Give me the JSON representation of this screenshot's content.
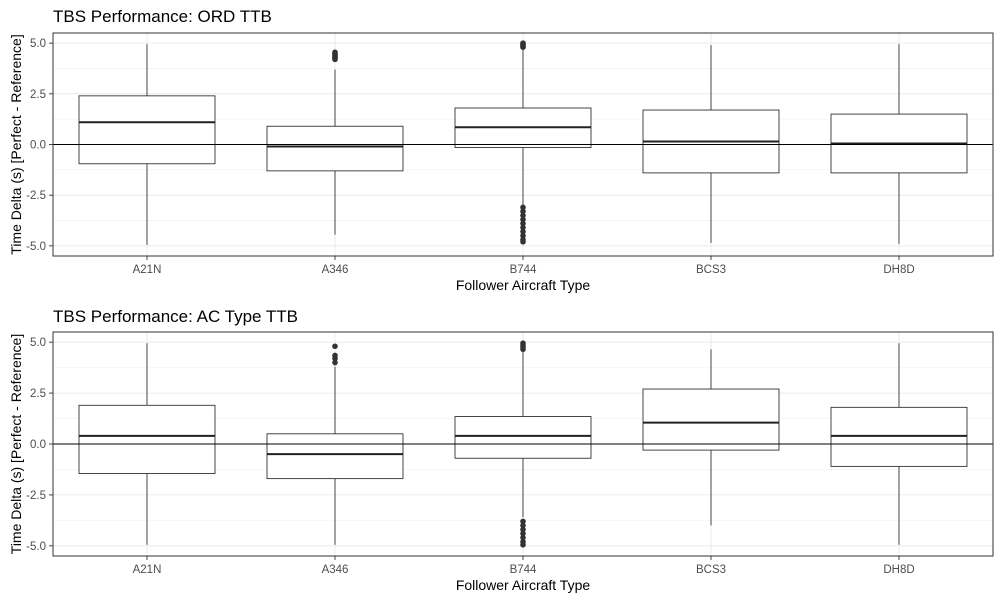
{
  "chart_data": [
    {
      "type": "boxplot",
      "title": "TBS Performance: ORD TTB",
      "xlabel": "Follower Aircraft Type",
      "ylabel": "Time Delta (s) [Perfect - Reference]",
      "ylim": [
        -5.5,
        5.5
      ],
      "yticks": [
        5.0,
        2.5,
        0.0,
        -2.5,
        -5.0
      ],
      "ytick_labels": [
        "5.0",
        "2.5",
        "0.0",
        "-2.5",
        "-5.0"
      ],
      "reference_line": 0,
      "grid": true,
      "categories": [
        "A21N",
        "A346",
        "B744",
        "BCS3",
        "DH8D"
      ],
      "boxes": [
        {
          "category": "A21N",
          "whisker_low": -4.95,
          "q1": -0.95,
          "median": 1.1,
          "q3": 2.4,
          "whisker_high": 4.95,
          "outliers": []
        },
        {
          "category": "A346",
          "whisker_low": -4.45,
          "q1": -1.3,
          "median": -0.1,
          "q3": 0.9,
          "whisker_high": 3.7,
          "outliers": [
            4.2,
            4.25,
            4.3,
            4.35,
            4.4,
            4.45,
            4.5,
            4.55
          ]
        },
        {
          "category": "B744",
          "whisker_low": -3.0,
          "q1": -0.15,
          "median": 0.85,
          "q3": 1.8,
          "whisker_high": 4.75,
          "outliers": [
            4.8,
            4.85,
            4.9,
            4.95,
            5.0,
            -3.1,
            -3.3,
            -3.5,
            -3.7,
            -3.9,
            -4.1,
            -4.3,
            -4.5,
            -4.7,
            -4.8
          ]
        },
        {
          "category": "BCS3",
          "whisker_low": -4.85,
          "q1": -1.4,
          "median": 0.15,
          "q3": 1.7,
          "whisker_high": 4.9,
          "outliers": []
        },
        {
          "category": "DH8D",
          "whisker_low": -4.9,
          "q1": -1.4,
          "median": 0.05,
          "q3": 1.5,
          "whisker_high": 4.95,
          "outliers": []
        }
      ]
    },
    {
      "type": "boxplot",
      "title": "TBS Performance: AC Type TTB",
      "xlabel": "Follower Aircraft Type",
      "ylabel": "Time Delta (s) [Perfect - Reference]",
      "ylim": [
        -5.5,
        5.5
      ],
      "yticks": [
        5.0,
        2.5,
        0.0,
        -2.5,
        -5.0
      ],
      "ytick_labels": [
        "5.0",
        "2.5",
        "0.0",
        "-2.5",
        "-5.0"
      ],
      "reference_line": 0,
      "grid": true,
      "categories": [
        "A21N",
        "A346",
        "B744",
        "BCS3",
        "DH8D"
      ],
      "boxes": [
        {
          "category": "A21N",
          "whisker_low": -4.95,
          "q1": -1.45,
          "median": 0.4,
          "q3": 1.9,
          "whisker_high": 4.95,
          "outliers": []
        },
        {
          "category": "A346",
          "whisker_low": -4.95,
          "q1": -1.7,
          "median": -0.5,
          "q3": 0.5,
          "whisker_high": 3.8,
          "outliers": [
            4.0,
            4.2,
            4.35,
            4.8
          ]
        },
        {
          "category": "B744",
          "whisker_low": -3.6,
          "q1": -0.7,
          "median": 0.4,
          "q3": 1.35,
          "whisker_high": 4.6,
          "outliers": [
            4.65,
            4.75,
            4.85,
            4.95,
            -3.8,
            -4.0,
            -4.2,
            -4.4,
            -4.6,
            -4.8,
            -4.95
          ]
        },
        {
          "category": "BCS3",
          "whisker_low": -4.0,
          "q1": -0.3,
          "median": 1.05,
          "q3": 2.7,
          "whisker_high": 4.65,
          "outliers": []
        },
        {
          "category": "DH8D",
          "whisker_low": -4.95,
          "q1": -1.1,
          "median": 0.4,
          "q3": 1.8,
          "whisker_high": 4.95,
          "outliers": []
        }
      ]
    }
  ]
}
